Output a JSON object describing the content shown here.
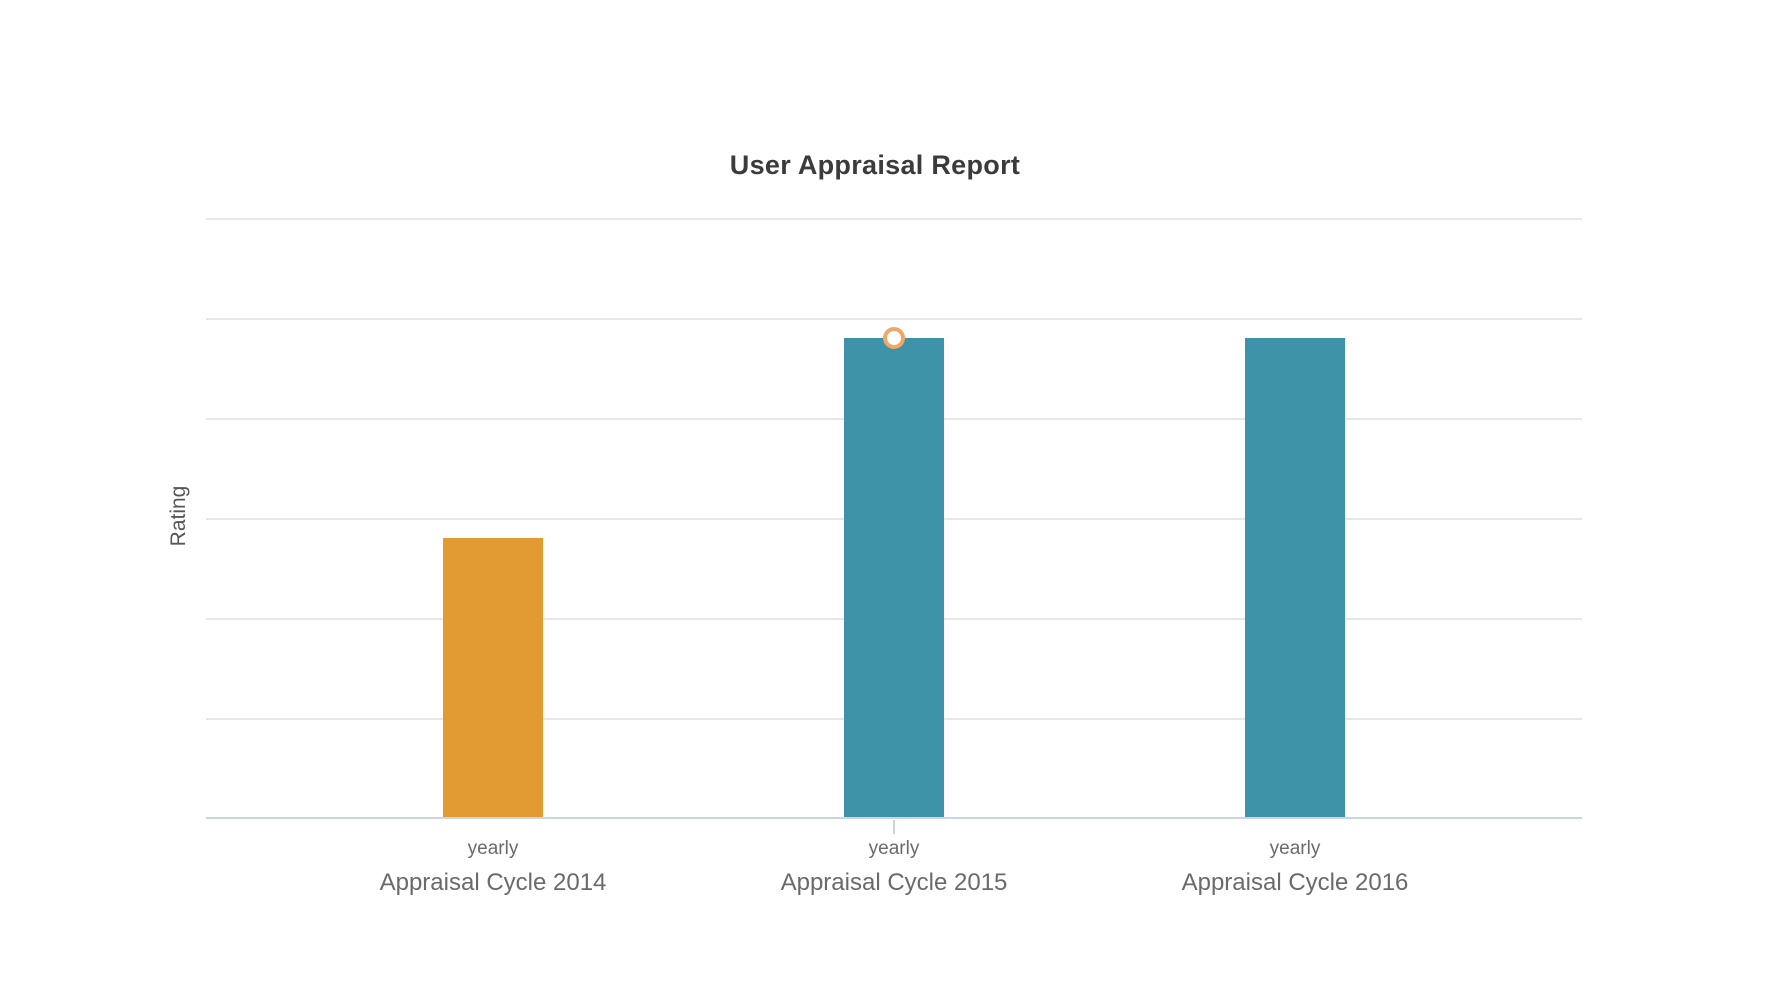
{
  "chart_data": {
    "type": "bar",
    "title": "User Appraisal Report",
    "xlabel": "",
    "ylabel": "Rating",
    "categories": [
      "Appraisal Cycle 2014",
      "Appraisal Cycle 2015",
      "Appraisal Cycle 2016"
    ],
    "bar_tick_labels": [
      "yearly",
      "yearly",
      "yearly"
    ],
    "series": [
      {
        "name": "yearly",
        "values": [
          2.8,
          4.8,
          4.8
        ]
      }
    ],
    "ylim": [
      0,
      6
    ],
    "y_gridline_step": 1,
    "y_tick_labels_visible": false,
    "grid": true,
    "legend": "none",
    "bar_colors": [
      "#e29a33",
      "#3e93a8",
      "#3e93a8"
    ],
    "hovered_point": {
      "category": "Appraisal Cycle 2015",
      "series": "yearly",
      "marker": "orange-ring",
      "marker_color": "#f2a765"
    }
  },
  "colors": {
    "background": "#ffffff",
    "title_text": "#3b3b3b",
    "axis_label_text": "#565656",
    "category_text": "#6a6a6a",
    "gridline": "#e7e7e7",
    "axis_line": "#c9d4e4"
  }
}
